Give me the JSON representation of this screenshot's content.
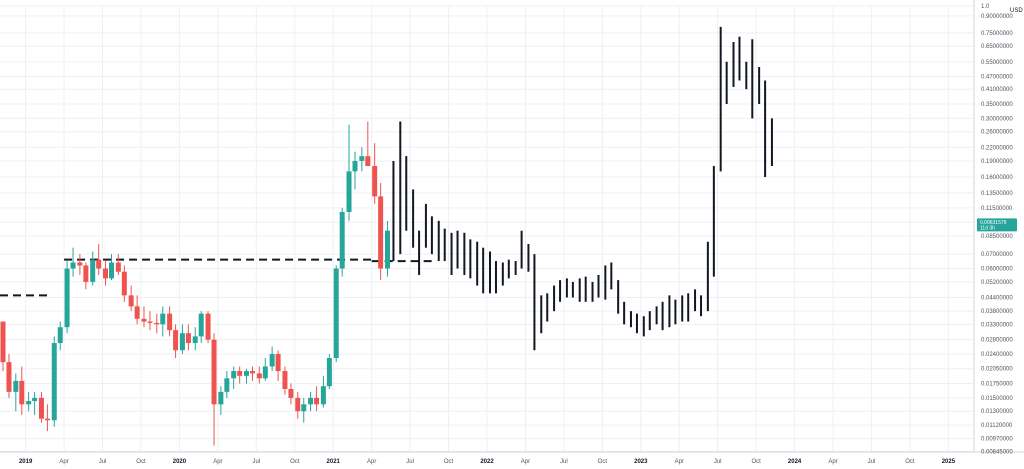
{
  "colors": {
    "up": "#26a69a",
    "down": "#ef5350",
    "projection": "#131722",
    "grid": "#eef0f3",
    "axis_text": "#50535e",
    "badge": "#26a69a"
  },
  "chart_data": {
    "type": "candlestick",
    "scale": "log",
    "unit_label": "USD",
    "ylim": [
      0.0084,
      1.0
    ],
    "yticks": [
      "1.0",
      "0.90000000",
      "0.75000000",
      "0.65000000",
      "0.55000000",
      "0.47000000",
      "0.41000000",
      "0.35000000",
      "0.30000000",
      "0.26000000",
      "0.22000000",
      "0.19000000",
      "0.16000000",
      "0.13500000",
      "0.11500000",
      "0.09850000",
      "0.08500000",
      "0.07000000",
      "0.06000000",
      "0.05200000",
      "0.04400000",
      "0.03800000",
      "0.03300000",
      "0.02800000",
      "0.02400000",
      "0.02050000",
      "0.01750000",
      "0.01500000",
      "0.01300000",
      "0.01120000",
      "0.00970000",
      "0.00845000"
    ],
    "xlim": [
      "2018-11",
      "2025-03"
    ],
    "xticks": [
      {
        "label": "2019",
        "date": "2019-01",
        "year": true
      },
      {
        "label": "Apr",
        "date": "2019-04"
      },
      {
        "label": "Jul",
        "date": "2019-07"
      },
      {
        "label": "Oct",
        "date": "2019-10"
      },
      {
        "label": "2020",
        "date": "2020-01",
        "year": true
      },
      {
        "label": "Apr",
        "date": "2020-04"
      },
      {
        "label": "Jul",
        "date": "2020-07"
      },
      {
        "label": "Oct",
        "date": "2020-10"
      },
      {
        "label": "2021",
        "date": "2021-01",
        "year": true
      },
      {
        "label": "Apr",
        "date": "2021-04"
      },
      {
        "label": "Jul",
        "date": "2021-07"
      },
      {
        "label": "Oct",
        "date": "2021-10"
      },
      {
        "label": "2022",
        "date": "2022-01",
        "year": true
      },
      {
        "label": "Apr",
        "date": "2022-04"
      },
      {
        "label": "Jul",
        "date": "2022-07"
      },
      {
        "label": "Oct",
        "date": "2022-10"
      },
      {
        "label": "2023",
        "date": "2023-01",
        "year": true
      },
      {
        "label": "Apr",
        "date": "2023-04"
      },
      {
        "label": "Jul",
        "date": "2023-07"
      },
      {
        "label": "Oct",
        "date": "2023-10"
      },
      {
        "label": "2024",
        "date": "2024-01",
        "year": true
      },
      {
        "label": "Apr",
        "date": "2024-04"
      },
      {
        "label": "Jul",
        "date": "2024-07"
      },
      {
        "label": "Oct",
        "date": "2024-10"
      },
      {
        "label": "2025",
        "date": "2025-01",
        "year": true
      }
    ],
    "candles": [
      {
        "date": "2018-11-01",
        "o": 0.034,
        "h": 0.034,
        "l": 0.02,
        "c": 0.022
      },
      {
        "date": "2018-11-15",
        "o": 0.022,
        "h": 0.024,
        "l": 0.015,
        "c": 0.016
      },
      {
        "date": "2018-12-01",
        "o": 0.016,
        "h": 0.0195,
        "l": 0.013,
        "c": 0.018
      },
      {
        "date": "2018-12-15",
        "o": 0.018,
        "h": 0.021,
        "l": 0.0125,
        "c": 0.014
      },
      {
        "date": "2019-01-01",
        "o": 0.014,
        "h": 0.016,
        "l": 0.013,
        "c": 0.0145
      },
      {
        "date": "2019-01-15",
        "o": 0.0145,
        "h": 0.016,
        "l": 0.0125,
        "c": 0.015
      },
      {
        "date": "2019-02-01",
        "o": 0.015,
        "h": 0.016,
        "l": 0.0115,
        "c": 0.012
      },
      {
        "date": "2019-02-15",
        "o": 0.012,
        "h": 0.014,
        "l": 0.0105,
        "c": 0.0118
      },
      {
        "date": "2019-03-01",
        "o": 0.0118,
        "h": 0.029,
        "l": 0.011,
        "c": 0.027
      },
      {
        "date": "2019-03-15",
        "o": 0.027,
        "h": 0.034,
        "l": 0.025,
        "c": 0.032
      },
      {
        "date": "2019-04-01",
        "o": 0.032,
        "h": 0.065,
        "l": 0.03,
        "c": 0.06
      },
      {
        "date": "2019-04-15",
        "o": 0.06,
        "h": 0.075,
        "l": 0.055,
        "c": 0.064
      },
      {
        "date": "2019-05-01",
        "o": 0.064,
        "h": 0.07,
        "l": 0.056,
        "c": 0.062
      },
      {
        "date": "2019-05-15",
        "o": 0.062,
        "h": 0.064,
        "l": 0.048,
        "c": 0.052
      },
      {
        "date": "2019-06-01",
        "o": 0.052,
        "h": 0.072,
        "l": 0.05,
        "c": 0.066
      },
      {
        "date": "2019-06-15",
        "o": 0.066,
        "h": 0.078,
        "l": 0.056,
        "c": 0.06
      },
      {
        "date": "2019-07-01",
        "o": 0.06,
        "h": 0.065,
        "l": 0.05,
        "c": 0.054
      },
      {
        "date": "2019-07-15",
        "o": 0.054,
        "h": 0.07,
        "l": 0.053,
        "c": 0.064
      },
      {
        "date": "2019-08-01",
        "o": 0.064,
        "h": 0.07,
        "l": 0.056,
        "c": 0.058
      },
      {
        "date": "2019-08-15",
        "o": 0.058,
        "h": 0.062,
        "l": 0.042,
        "c": 0.045
      },
      {
        "date": "2019-09-01",
        "o": 0.045,
        "h": 0.05,
        "l": 0.038,
        "c": 0.04
      },
      {
        "date": "2019-09-15",
        "o": 0.04,
        "h": 0.045,
        "l": 0.033,
        "c": 0.035
      },
      {
        "date": "2019-10-01",
        "o": 0.035,
        "h": 0.04,
        "l": 0.032,
        "c": 0.034
      },
      {
        "date": "2019-10-15",
        "o": 0.034,
        "h": 0.038,
        "l": 0.031,
        "c": 0.0335
      },
      {
        "date": "2019-11-01",
        "o": 0.0335,
        "h": 0.037,
        "l": 0.03,
        "c": 0.033
      },
      {
        "date": "2019-11-15",
        "o": 0.033,
        "h": 0.04,
        "l": 0.029,
        "c": 0.037
      },
      {
        "date": "2019-12-01",
        "o": 0.037,
        "h": 0.04,
        "l": 0.029,
        "c": 0.031
      },
      {
        "date": "2019-12-15",
        "o": 0.031,
        "h": 0.033,
        "l": 0.023,
        "c": 0.025
      },
      {
        "date": "2020-01-01",
        "o": 0.025,
        "h": 0.033,
        "l": 0.024,
        "c": 0.03
      },
      {
        "date": "2020-01-15",
        "o": 0.03,
        "h": 0.033,
        "l": 0.025,
        "c": 0.027
      },
      {
        "date": "2020-02-01",
        "o": 0.027,
        "h": 0.032,
        "l": 0.025,
        "c": 0.029
      },
      {
        "date": "2020-02-15",
        "o": 0.029,
        "h": 0.038,
        "l": 0.027,
        "c": 0.037
      },
      {
        "date": "2020-03-01",
        "o": 0.037,
        "h": 0.038,
        "l": 0.027,
        "c": 0.028
      },
      {
        "date": "2020-03-15",
        "o": 0.028,
        "h": 0.03,
        "l": 0.009,
        "c": 0.014
      },
      {
        "date": "2020-04-01",
        "o": 0.014,
        "h": 0.017,
        "l": 0.0125,
        "c": 0.016
      },
      {
        "date": "2020-04-15",
        "o": 0.016,
        "h": 0.02,
        "l": 0.015,
        "c": 0.0185
      },
      {
        "date": "2020-05-01",
        "o": 0.0185,
        "h": 0.021,
        "l": 0.0165,
        "c": 0.02
      },
      {
        "date": "2020-05-15",
        "o": 0.02,
        "h": 0.021,
        "l": 0.0175,
        "c": 0.019
      },
      {
        "date": "2020-06-01",
        "o": 0.019,
        "h": 0.0205,
        "l": 0.0175,
        "c": 0.02
      },
      {
        "date": "2020-06-15",
        "o": 0.02,
        "h": 0.021,
        "l": 0.018,
        "c": 0.0195
      },
      {
        "date": "2020-07-01",
        "o": 0.0195,
        "h": 0.021,
        "l": 0.0175,
        "c": 0.0185
      },
      {
        "date": "2020-07-15",
        "o": 0.0185,
        "h": 0.023,
        "l": 0.018,
        "c": 0.021
      },
      {
        "date": "2020-08-01",
        "o": 0.021,
        "h": 0.026,
        "l": 0.02,
        "c": 0.024
      },
      {
        "date": "2020-08-15",
        "o": 0.024,
        "h": 0.025,
        "l": 0.018,
        "c": 0.02
      },
      {
        "date": "2020-09-01",
        "o": 0.02,
        "h": 0.021,
        "l": 0.0155,
        "c": 0.0165
      },
      {
        "date": "2020-09-15",
        "o": 0.0165,
        "h": 0.0175,
        "l": 0.014,
        "c": 0.015
      },
      {
        "date": "2020-10-01",
        "o": 0.015,
        "h": 0.016,
        "l": 0.012,
        "c": 0.013
      },
      {
        "date": "2020-10-15",
        "o": 0.013,
        "h": 0.015,
        "l": 0.0115,
        "c": 0.014
      },
      {
        "date": "2020-11-01",
        "o": 0.014,
        "h": 0.016,
        "l": 0.013,
        "c": 0.015
      },
      {
        "date": "2020-11-15",
        "o": 0.015,
        "h": 0.017,
        "l": 0.013,
        "c": 0.014
      },
      {
        "date": "2020-12-01",
        "o": 0.014,
        "h": 0.019,
        "l": 0.0135,
        "c": 0.017
      },
      {
        "date": "2020-12-15",
        "o": 0.017,
        "h": 0.024,
        "l": 0.0165,
        "c": 0.023
      },
      {
        "date": "2021-01-01",
        "o": 0.023,
        "h": 0.062,
        "l": 0.022,
        "c": 0.06
      },
      {
        "date": "2021-01-15",
        "o": 0.06,
        "h": 0.115,
        "l": 0.055,
        "c": 0.11
      },
      {
        "date": "2021-02-01",
        "o": 0.11,
        "h": 0.28,
        "l": 0.1,
        "c": 0.17
      },
      {
        "date": "2021-02-15",
        "o": 0.17,
        "h": 0.21,
        "l": 0.14,
        "c": 0.19
      },
      {
        "date": "2021-03-01",
        "o": 0.19,
        "h": 0.22,
        "l": 0.17,
        "c": 0.2
      },
      {
        "date": "2021-03-15",
        "o": 0.2,
        "h": 0.29,
        "l": 0.18,
        "c": 0.18
      },
      {
        "date": "2021-04-01",
        "o": 0.18,
        "h": 0.23,
        "l": 0.12,
        "c": 0.13
      },
      {
        "date": "2021-04-15",
        "o": 0.13,
        "h": 0.15,
        "l": 0.053,
        "c": 0.06
      },
      {
        "date": "2021-05-01",
        "o": 0.06,
        "h": 0.1,
        "l": 0.055,
        "c": 0.09
      }
    ],
    "projection_bars": [
      {
        "date": "2021-05-15",
        "h": 0.19,
        "l": 0.065
      },
      {
        "date": "2021-06-01",
        "h": 0.29,
        "l": 0.07
      },
      {
        "date": "2021-06-15",
        "h": 0.2,
        "l": 0.09
      },
      {
        "date": "2021-07-01",
        "h": 0.14,
        "l": 0.075
      },
      {
        "date": "2021-07-15",
        "h": 0.09,
        "l": 0.056
      },
      {
        "date": "2021-08-01",
        "h": 0.12,
        "l": 0.075
      },
      {
        "date": "2021-08-15",
        "h": 0.105,
        "l": 0.07
      },
      {
        "date": "2021-09-01",
        "h": 0.1,
        "l": 0.065
      },
      {
        "date": "2021-09-15",
        "h": 0.092,
        "l": 0.065
      },
      {
        "date": "2021-10-01",
        "h": 0.088,
        "l": 0.056
      },
      {
        "date": "2021-10-15",
        "h": 0.09,
        "l": 0.06
      },
      {
        "date": "2021-11-01",
        "h": 0.088,
        "l": 0.056
      },
      {
        "date": "2021-11-15",
        "h": 0.082,
        "l": 0.054
      },
      {
        "date": "2021-12-01",
        "h": 0.08,
        "l": 0.05
      },
      {
        "date": "2021-12-15",
        "h": 0.075,
        "l": 0.046
      },
      {
        "date": "2022-01-01",
        "h": 0.072,
        "l": 0.046
      },
      {
        "date": "2022-01-15",
        "h": 0.065,
        "l": 0.046
      },
      {
        "date": "2022-02-01",
        "h": 0.064,
        "l": 0.05
      },
      {
        "date": "2022-02-15",
        "h": 0.066,
        "l": 0.054
      },
      {
        "date": "2022-03-01",
        "h": 0.065,
        "l": 0.056
      },
      {
        "date": "2022-03-15",
        "h": 0.09,
        "l": 0.06
      },
      {
        "date": "2022-04-01",
        "h": 0.078,
        "l": 0.058
      },
      {
        "date": "2022-04-15",
        "h": 0.07,
        "l": 0.025
      },
      {
        "date": "2022-05-01",
        "h": 0.045,
        "l": 0.03
      },
      {
        "date": "2022-05-15",
        "h": 0.046,
        "l": 0.034
      },
      {
        "date": "2022-06-01",
        "h": 0.05,
        "l": 0.038
      },
      {
        "date": "2022-06-15",
        "h": 0.053,
        "l": 0.042
      },
      {
        "date": "2022-07-01",
        "h": 0.054,
        "l": 0.044
      },
      {
        "date": "2022-07-15",
        "h": 0.052,
        "l": 0.044
      },
      {
        "date": "2022-08-01",
        "h": 0.054,
        "l": 0.042
      },
      {
        "date": "2022-08-15",
        "h": 0.055,
        "l": 0.042
      },
      {
        "date": "2022-09-01",
        "h": 0.052,
        "l": 0.042
      },
      {
        "date": "2022-09-15",
        "h": 0.056,
        "l": 0.044
      },
      {
        "date": "2022-10-01",
        "h": 0.062,
        "l": 0.043
      },
      {
        "date": "2022-10-15",
        "h": 0.064,
        "l": 0.048
      },
      {
        "date": "2022-11-01",
        "h": 0.053,
        "l": 0.037
      },
      {
        "date": "2022-11-15",
        "h": 0.042,
        "l": 0.033
      },
      {
        "date": "2022-12-01",
        "h": 0.038,
        "l": 0.032
      },
      {
        "date": "2022-12-15",
        "h": 0.037,
        "l": 0.03
      },
      {
        "date": "2023-01-01",
        "h": 0.036,
        "l": 0.029
      },
      {
        "date": "2023-01-15",
        "h": 0.038,
        "l": 0.031
      },
      {
        "date": "2023-02-01",
        "h": 0.04,
        "l": 0.033
      },
      {
        "date": "2023-02-15",
        "h": 0.042,
        "l": 0.031
      },
      {
        "date": "2023-03-01",
        "h": 0.045,
        "l": 0.032
      },
      {
        "date": "2023-03-15",
        "h": 0.043,
        "l": 0.033
      },
      {
        "date": "2023-04-01",
        "h": 0.045,
        "l": 0.034
      },
      {
        "date": "2023-04-15",
        "h": 0.046,
        "l": 0.034
      },
      {
        "date": "2023-05-01",
        "h": 0.048,
        "l": 0.038
      },
      {
        "date": "2023-05-15",
        "h": 0.045,
        "l": 0.036
      },
      {
        "date": "2023-06-01",
        "h": 0.08,
        "l": 0.038
      },
      {
        "date": "2023-06-15",
        "h": 0.18,
        "l": 0.055
      },
      {
        "date": "2023-07-01",
        "h": 0.8,
        "l": 0.17
      },
      {
        "date": "2023-07-15",
        "h": 0.55,
        "l": 0.35
      },
      {
        "date": "2023-08-01",
        "h": 0.68,
        "l": 0.42
      },
      {
        "date": "2023-08-15",
        "h": 0.72,
        "l": 0.45
      },
      {
        "date": "2023-09-01",
        "h": 0.55,
        "l": 0.41
      },
      {
        "date": "2023-09-15",
        "h": 0.7,
        "l": 0.3
      },
      {
        "date": "2023-10-01",
        "h": 0.52,
        "l": 0.35
      },
      {
        "date": "2023-10-15",
        "h": 0.45,
        "l": 0.16
      },
      {
        "date": "2023-11-01",
        "h": 0.3,
        "l": 0.18
      }
    ],
    "reference_lines": [
      {
        "value": 0.045,
        "from": "2018-11",
        "to": "2019-03"
      },
      {
        "value": 0.066,
        "from": "2019-04",
        "to": "2021-04"
      },
      {
        "value": 0.065,
        "from": "2021-04",
        "to": "2021-09"
      }
    ],
    "last_price": {
      "value": "0.09631579",
      "countdown": "11d 3h"
    }
  }
}
